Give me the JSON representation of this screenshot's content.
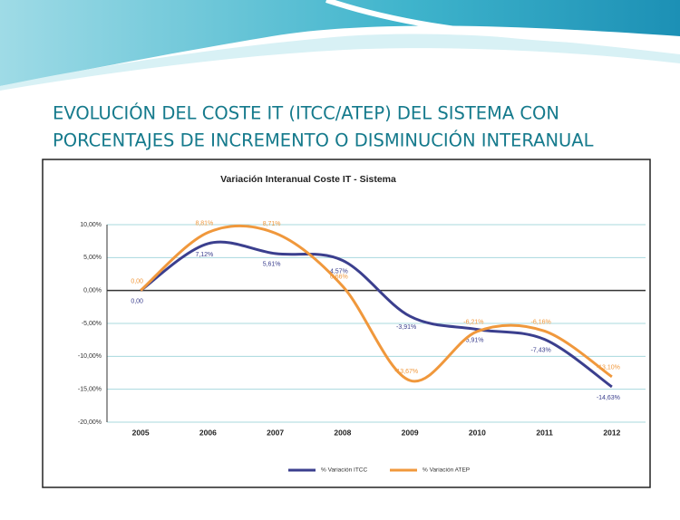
{
  "slide_title": [
    "EVOLUCIÓN DEL COSTE IT (ITCC/ATEP) DEL SISTEMA CON",
    "PORCENTAJES DE INCREMENTO O DISMINUCIÓN INTERANUAL"
  ],
  "chart_data": {
    "type": "line",
    "title": "Variación Interanual Coste IT - Sistema",
    "categories": [
      "2005",
      "2006",
      "2007",
      "2008",
      "2009",
      "2010",
      "2011",
      "2012"
    ],
    "series": [
      {
        "name": "% Variación ITCC",
        "color": "#3b3f8e",
        "values": [
          0,
          7.12,
          5.61,
          4.57,
          -3.91,
          -5.91,
          -7.43,
          -14.63
        ],
        "value_labels": [
          "0,00",
          "7,12%",
          "5,61%",
          "4,57%",
          "-3,91%",
          "-5,91%",
          "-7,43%",
          "-14,63%"
        ]
      },
      {
        "name": "% Variación ATEP",
        "color": "#f0983c",
        "values": [
          0,
          8.81,
          8.71,
          0.66,
          -13.67,
          -6.21,
          -6.16,
          -13.1
        ],
        "value_labels": [
          "0,00",
          "8,81%",
          "8,71%",
          "0,66%",
          "-13,67%",
          "-6,21%",
          "-6,16%",
          "-13,10%"
        ]
      }
    ],
    "ylim": [
      -20,
      10
    ],
    "yticks": [
      {
        "value": -20,
        "label": "-20,00%"
      },
      {
        "value": -15,
        "label": "-15,00%"
      },
      {
        "value": -10,
        "label": "-10,00%"
      },
      {
        "value": -5,
        "label": "-5,00%"
      },
      {
        "value": 0,
        "label": "0,00%"
      },
      {
        "value": 5,
        "label": "5,00%"
      },
      {
        "value": 10,
        "label": "10,00%"
      }
    ],
    "grid": true,
    "legend": "bottom"
  }
}
